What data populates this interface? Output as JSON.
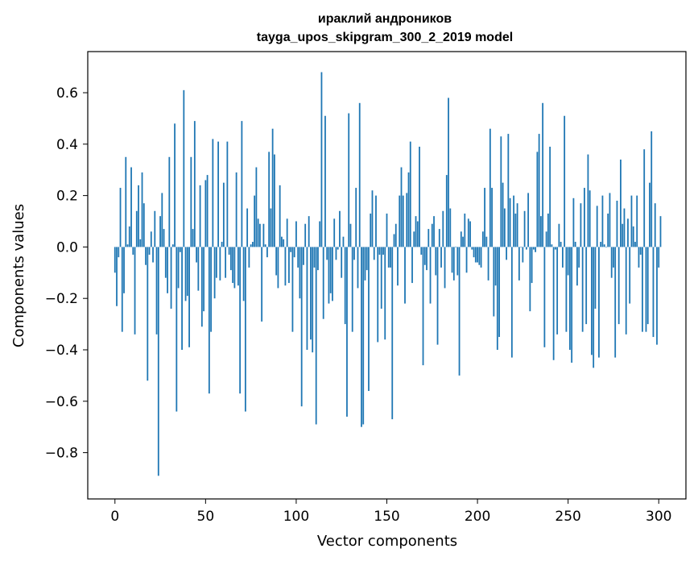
{
  "chart_data": {
    "type": "bar",
    "title": "ираклий андроников",
    "subtitle": "tayga_upos_skipgram_300_2_2019 model",
    "xlabel": "Vector components",
    "ylabel": "Components values",
    "xlim": [
      -15,
      315
    ],
    "ylim": [
      -0.98,
      0.76
    ],
    "xticks": [
      0,
      50,
      100,
      150,
      200,
      250,
      300
    ],
    "yticks": [
      -0.8,
      -0.6,
      -0.4,
      -0.2,
      0.0,
      0.2,
      0.4,
      0.6
    ],
    "ytick_labels": [
      "−0.8",
      "−0.6",
      "−0.4",
      "−0.2",
      "0.0",
      "0.2",
      "0.4",
      "0.6"
    ],
    "bar_color": "#1f77b4",
    "x_start": 0,
    "values": [
      -0.1,
      -0.23,
      -0.04,
      0.23,
      -0.33,
      -0.18,
      0.35,
      0.01,
      0.08,
      0.31,
      -0.03,
      -0.34,
      0.14,
      0.24,
      0.03,
      0.29,
      0.17,
      -0.07,
      -0.52,
      -0.03,
      0.06,
      -0.06,
      0.14,
      -0.34,
      -0.89,
      0.12,
      0.21,
      0.07,
      -0.12,
      -0.18,
      0.35,
      -0.24,
      0.01,
      0.48,
      -0.64,
      -0.16,
      -0.02,
      -0.4,
      0.61,
      -0.21,
      -0.19,
      -0.39,
      0.35,
      0.07,
      0.49,
      -0.06,
      -0.17,
      0.24,
      -0.31,
      -0.25,
      0.26,
      0.28,
      -0.57,
      -0.33,
      0.42,
      -0.2,
      -0.12,
      0.41,
      -0.13,
      0.02,
      0.25,
      -0.12,
      0.41,
      -0.03,
      -0.09,
      -0.14,
      -0.16,
      0.29,
      -0.15,
      -0.57,
      0.49,
      -0.21,
      -0.64,
      0.15,
      -0.08,
      0.01,
      0.02,
      0.2,
      0.31,
      0.11,
      0.09,
      -0.29,
      0.09,
      0.01,
      -0.04,
      0.37,
      0.15,
      0.46,
      0.36,
      -0.11,
      -0.16,
      0.24,
      0.04,
      0.03,
      -0.15,
      0.11,
      -0.14,
      -0.02,
      -0.33,
      -0.04,
      0.1,
      -0.08,
      -0.2,
      -0.62,
      -0.07,
      0.09,
      -0.4,
      0.12,
      -0.36,
      -0.41,
      -0.08,
      -0.69,
      -0.09,
      0.1,
      0.68,
      -0.28,
      0.51,
      -0.05,
      -0.22,
      -0.18,
      -0.21,
      0.11,
      -0.05,
      -0.01,
      0.14,
      -0.12,
      0.04,
      -0.3,
      -0.66,
      0.52,
      0.09,
      -0.33,
      -0.05,
      0.23,
      -0.16,
      0.56,
      -0.7,
      -0.69,
      -0.13,
      -0.09,
      -0.56,
      0.13,
      0.22,
      -0.05,
      0.2,
      -0.37,
      -0.03,
      -0.24,
      -0.03,
      -0.36,
      0.13,
      -0.08,
      -0.08,
      -0.67,
      0.05,
      0.09,
      -0.15,
      0.2,
      0.31,
      0.2,
      -0.22,
      0.21,
      0.29,
      0.41,
      -0.14,
      0.06,
      0.12,
      0.1,
      0.39,
      -0.03,
      -0.46,
      -0.07,
      -0.09,
      0.07,
      -0.22,
      0.09,
      0.12,
      -0.11,
      -0.38,
      0.07,
      -0.08,
      0.14,
      -0.16,
      0.28,
      0.58,
      0.15,
      -0.1,
      -0.13,
      0.0,
      -0.11,
      -0.5,
      0.06,
      0.04,
      0.13,
      -0.1,
      0.11,
      0.1,
      -0.01,
      -0.04,
      -0.06,
      -0.06,
      -0.07,
      -0.08,
      0.06,
      0.23,
      0.04,
      -0.13,
      0.46,
      0.23,
      -0.27,
      -0.15,
      -0.4,
      -0.35,
      0.43,
      0.25,
      0.15,
      -0.05,
      0.44,
      0.19,
      -0.43,
      0.2,
      0.13,
      0.17,
      -0.13,
      0.0,
      -0.06,
      0.14,
      -0.01,
      0.21,
      -0.25,
      -0.14,
      -0.01,
      -0.02,
      0.37,
      0.44,
      0.12,
      0.56,
      -0.39,
      0.06,
      0.13,
      0.39,
      0.01,
      -0.44,
      -0.01,
      -0.34,
      0.09,
      0.02,
      -0.08,
      0.51,
      -0.33,
      -0.11,
      -0.4,
      -0.45,
      0.19,
      0.02,
      -0.15,
      -0.08,
      0.17,
      -0.33,
      0.23,
      -0.3,
      0.36,
      0.22,
      -0.42,
      -0.47,
      -0.24,
      0.16,
      -0.43,
      0.02,
      0.2,
      0.01,
      0.0,
      0.13,
      0.21,
      -0.12,
      -0.08,
      -0.43,
      0.18,
      -0.3,
      0.34,
      0.09,
      0.15,
      -0.34,
      0.11,
      -0.22,
      0.2,
      0.08,
      0.02,
      0.2,
      -0.08,
      -0.03,
      -0.33,
      0.38,
      -0.33,
      -0.3,
      0.25,
      0.45,
      -0.35,
      0.17,
      -0.38,
      -0.08,
      0.12
    ]
  }
}
